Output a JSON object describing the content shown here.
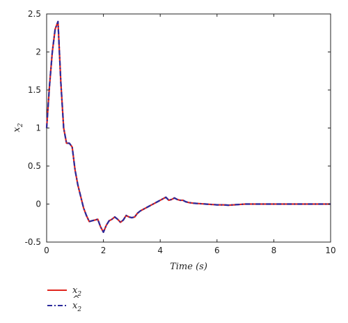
{
  "chart_data": {
    "type": "line",
    "xlabel": "Time (s)",
    "ylabel_base": "x",
    "ylabel_sub": "2",
    "xlim": [
      0,
      10
    ],
    "ylim": [
      -0.5,
      2.5
    ],
    "x_ticks": [
      0,
      2,
      4,
      6,
      8,
      10
    ],
    "y_ticks": [
      -0.5,
      0,
      0.5,
      1,
      1.5,
      2,
      2.5
    ],
    "x_tick_labels": [
      "0",
      "2",
      "4",
      "6",
      "8",
      "10"
    ],
    "y_tick_labels": [
      "-0.5",
      "0",
      "0.5",
      "1",
      "1.5",
      "2",
      "2.5"
    ],
    "legend_placement": "bottom-left, below plot",
    "colors": {
      "x2": "#e0261e",
      "x2_hat": "#2b2b9c"
    },
    "series": [
      {
        "name": "x2",
        "legend_base": "x",
        "legend_sub": "2",
        "style": "solid",
        "x": [
          0,
          0.1,
          0.2,
          0.3,
          0.4,
          0.5,
          0.6,
          0.7,
          0.8,
          0.9,
          1.0,
          1.1,
          1.2,
          1.3,
          1.4,
          1.5,
          1.6,
          1.7,
          1.8,
          1.9,
          2.0,
          2.1,
          2.2,
          2.3,
          2.4,
          2.5,
          2.6,
          2.7,
          2.8,
          2.9,
          3.0,
          3.1,
          3.2,
          3.3,
          3.4,
          3.5,
          3.6,
          3.7,
          3.8,
          3.9,
          4.0,
          4.1,
          4.2,
          4.3,
          4.4,
          4.5,
          4.6,
          4.7,
          4.8,
          4.9,
          5.0,
          5.2,
          5.4,
          5.6,
          5.8,
          6.0,
          6.2,
          6.4,
          6.6,
          6.8,
          7.0,
          7.5,
          8.0,
          8.5,
          9.0,
          9.5,
          10.0
        ],
        "y": [
          1.0,
          1.55,
          2.0,
          2.3,
          2.4,
          1.6,
          1.0,
          0.8,
          0.8,
          0.75,
          0.45,
          0.25,
          0.1,
          -0.05,
          -0.15,
          -0.23,
          -0.22,
          -0.21,
          -0.2,
          -0.3,
          -0.37,
          -0.28,
          -0.22,
          -0.2,
          -0.17,
          -0.2,
          -0.24,
          -0.21,
          -0.15,
          -0.17,
          -0.18,
          -0.17,
          -0.12,
          -0.09,
          -0.07,
          -0.05,
          -0.03,
          -0.01,
          0.01,
          0.03,
          0.05,
          0.07,
          0.09,
          0.05,
          0.06,
          0.08,
          0.06,
          0.05,
          0.05,
          0.03,
          0.02,
          0.01,
          0.005,
          0.0,
          -0.005,
          -0.01,
          -0.01,
          -0.015,
          -0.01,
          -0.005,
          0.0,
          0.0,
          0.0,
          0.0,
          0.0,
          0.0,
          0.0
        ]
      },
      {
        "name": "x2_hat",
        "legend_base": "x",
        "legend_hat": "^",
        "legend_sub": "2",
        "style": "dashdot",
        "x": [
          0,
          0.1,
          0.2,
          0.3,
          0.4,
          0.5,
          0.6,
          0.7,
          0.8,
          0.9,
          1.0,
          1.1,
          1.2,
          1.3,
          1.4,
          1.5,
          1.6,
          1.7,
          1.8,
          1.9,
          2.0,
          2.1,
          2.2,
          2.3,
          2.4,
          2.5,
          2.6,
          2.7,
          2.8,
          2.9,
          3.0,
          3.1,
          3.2,
          3.3,
          3.4,
          3.5,
          3.6,
          3.7,
          3.8,
          3.9,
          4.0,
          4.1,
          4.2,
          4.3,
          4.4,
          4.5,
          4.6,
          4.7,
          4.8,
          4.9,
          5.0,
          5.2,
          5.4,
          5.6,
          5.8,
          6.0,
          6.2,
          6.4,
          6.6,
          6.8,
          7.0,
          7.5,
          8.0,
          8.5,
          9.0,
          9.5,
          10.0
        ],
        "y": [
          1.0,
          1.55,
          2.0,
          2.3,
          2.4,
          1.6,
          1.0,
          0.8,
          0.8,
          0.75,
          0.45,
          0.25,
          0.1,
          -0.05,
          -0.15,
          -0.23,
          -0.22,
          -0.21,
          -0.2,
          -0.3,
          -0.37,
          -0.28,
          -0.22,
          -0.2,
          -0.17,
          -0.2,
          -0.24,
          -0.21,
          -0.15,
          -0.17,
          -0.18,
          -0.17,
          -0.12,
          -0.09,
          -0.07,
          -0.05,
          -0.03,
          -0.01,
          0.01,
          0.03,
          0.05,
          0.07,
          0.09,
          0.05,
          0.06,
          0.08,
          0.06,
          0.05,
          0.05,
          0.03,
          0.02,
          0.01,
          0.005,
          0.0,
          -0.005,
          -0.01,
          -0.01,
          -0.015,
          -0.01,
          -0.005,
          0.0,
          0.0,
          0.0,
          0.0,
          0.0,
          0.0,
          0.0
        ]
      }
    ]
  }
}
